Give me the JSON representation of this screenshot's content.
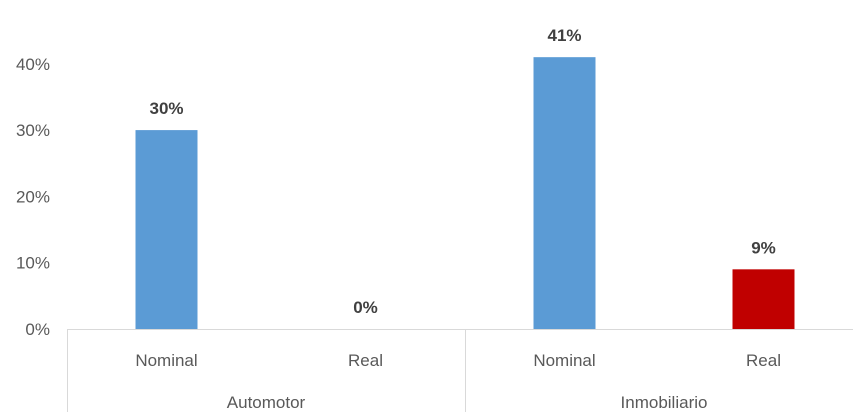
{
  "chart_data": {
    "type": "bar",
    "groups": [
      {
        "label": "Automotor",
        "bars": [
          {
            "category": "Nominal",
            "value": 0.3,
            "label": "30%",
            "color": "#5b9bd5"
          },
          {
            "category": "Real",
            "value": 0.0,
            "label": "0%",
            "color": "#c00000"
          }
        ]
      },
      {
        "label": "Inmobiliario",
        "bars": [
          {
            "category": "Nominal",
            "value": 0.41,
            "label": "41%",
            "color": "#5b9bd5"
          },
          {
            "category": "Real",
            "value": 0.09,
            "label": "9%",
            "color": "#c00000"
          }
        ]
      }
    ],
    "y_ticks": [
      "0%",
      "10%",
      "20%",
      "30%",
      "40%"
    ],
    "ylim": [
      0,
      0.45
    ],
    "grid": false,
    "legend": "none"
  }
}
